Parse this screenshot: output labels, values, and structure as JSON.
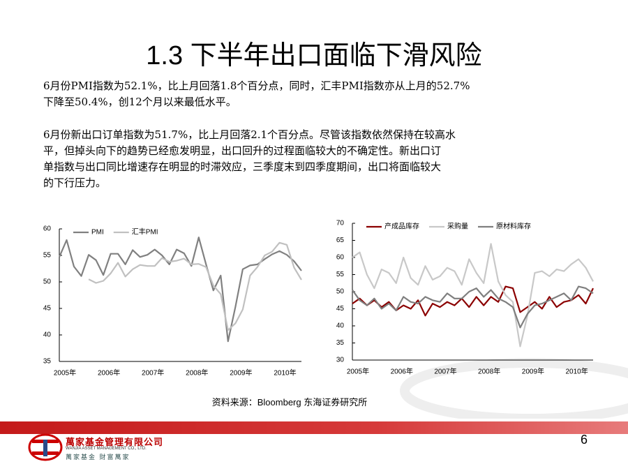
{
  "title": "1.3 下半年出口面临下滑风险",
  "paragraphs": [
    [
      "6月份PMI指数为52.1%，比上月回落1.8个百分点，同时，汇丰PMI指数亦从上月的52.7%",
      "下降至50.4%，创12个月以来最低水平。"
    ],
    [
      "6月份新出口订单指数为51.7%，比上月回落2.1个百分点。尽管该指数依然保持在较高水",
      "平，但掉头向下的趋势已经愈发明显，出口回升的过程面临较大的不确定性。新出口订",
      "单指数与出口同比增速存在明显的时滞效应，三季度末到四季度期间，出口将面临较大",
      "的下行压力。"
    ]
  ],
  "chart_data": [
    {
      "type": "line",
      "categories": [
        "2005年",
        null,
        null,
        null,
        null,
        null,
        "2006年",
        null,
        null,
        null,
        null,
        null,
        "2007年",
        null,
        null,
        null,
        null,
        null,
        "2008年",
        null,
        null,
        null,
        null,
        null,
        "2009年",
        null,
        null,
        null,
        null,
        null,
        "2010年",
        null,
        null,
        null
      ],
      "series": [
        {
          "name": "PMI",
          "color": "#808080",
          "values": [
            54.7,
            57.9,
            52.9,
            51.1,
            55.1,
            54.1,
            51.3,
            55.3,
            55.3,
            53.3,
            56.0,
            54.7,
            55.1,
            56.1,
            55.0,
            53.3,
            56.1,
            55.4,
            53.0,
            58.4,
            53.3,
            48.4,
            51.2,
            38.8,
            45.3,
            52.4,
            53.1,
            53.3,
            54.3,
            55.2,
            55.8,
            55.1,
            53.9,
            52.1
          ]
        },
        {
          "name": "汇丰PMI",
          "color": "#c0c0c0",
          "values": [
            null,
            null,
            null,
            null,
            50.5,
            49.8,
            50.2,
            51.6,
            53.6,
            51.0,
            52.4,
            53.2,
            53.0,
            53.0,
            54.5,
            53.8,
            54.0,
            54.4,
            53.3,
            53.4,
            52.8,
            49.3,
            47.7,
            40.9,
            42.2,
            44.8,
            51.2,
            52.8,
            55.0,
            55.7,
            57.4,
            57.0,
            52.7,
            50.4
          ]
        }
      ],
      "ylim": [
        35,
        60
      ],
      "yticks": [
        35,
        40,
        45,
        50,
        55,
        60
      ],
      "legend": "top-left"
    },
    {
      "type": "line",
      "categories": [
        "2005年",
        null,
        null,
        null,
        null,
        null,
        "2006年",
        null,
        null,
        null,
        null,
        null,
        "2007年",
        null,
        null,
        null,
        null,
        null,
        "2008年",
        null,
        null,
        null,
        null,
        null,
        "2009年",
        null,
        null,
        null,
        null,
        null,
        "2010年",
        null,
        null,
        null
      ],
      "series": [
        {
          "name": "产成品库存",
          "color": "#8b0000",
          "values": [
            46.5,
            48.0,
            46.0,
            47.5,
            45.5,
            47.0,
            44.5,
            46.0,
            45.0,
            47.5,
            43.0,
            46.5,
            45.5,
            47.0,
            46.0,
            48.0,
            45.5,
            48.5,
            46.0,
            48.5,
            47.0,
            51.5,
            51.0,
            44.0,
            45.5,
            47.0,
            45.0,
            48.5,
            45.5,
            47.0,
            47.5,
            49.0,
            46.5,
            51.0
          ]
        },
        {
          "name": "采购量",
          "color": "#c8c8c8",
          "values": [
            60.0,
            61.5,
            55.0,
            51.0,
            56.5,
            55.5,
            52.5,
            60.0,
            54.0,
            52.0,
            57.5,
            53.5,
            54.5,
            57.0,
            56.0,
            52.0,
            59.5,
            55.5,
            52.5,
            64.0,
            53.0,
            49.0,
            47.0,
            34.0,
            43.0,
            55.5,
            56.0,
            54.5,
            56.5,
            56.0,
            58.0,
            59.5,
            57.0,
            53.0
          ]
        },
        {
          "name": "原材料库存",
          "color": "#7f7f7f",
          "values": [
            50.5,
            47.5,
            46.0,
            48.0,
            45.0,
            46.5,
            44.5,
            48.5,
            47.0,
            46.5,
            48.5,
            47.5,
            47.0,
            49.5,
            48.0,
            48.0,
            50.0,
            51.0,
            48.5,
            50.5,
            48.0,
            47.0,
            45.5,
            39.5,
            43.5,
            46.0,
            46.5,
            47.5,
            48.5,
            49.5,
            47.5,
            51.5,
            51.0,
            49.5
          ]
        }
      ],
      "ylim": [
        30,
        70
      ],
      "yticks": [
        30,
        35,
        40,
        45,
        50,
        55,
        60,
        65,
        70
      ],
      "legend": "top-left"
    }
  ],
  "source": "资料来源：Bloomberg 东海证券研究所",
  "page_number": "6",
  "logo": {
    "name": "萬家基金管理有限公司",
    "english": "WANJIA ASSET MANAGEMENT CO., LTD.",
    "slogan": "萬家基金 財富萬家"
  }
}
